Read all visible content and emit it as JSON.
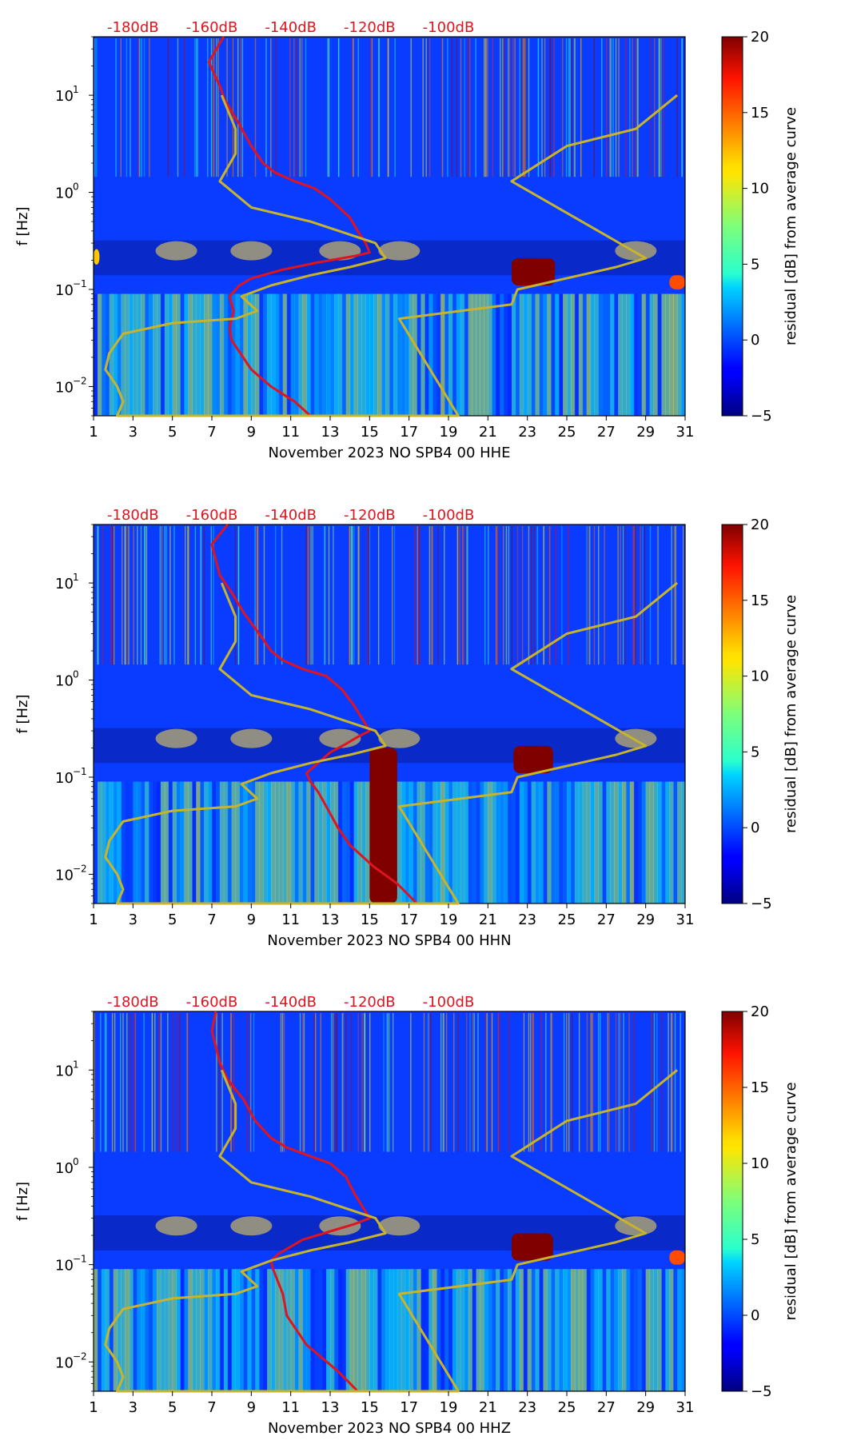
{
  "chart_data": [
    {
      "type": "heatmap",
      "xlabel": "November 2023 NO SPB4 00 HHE",
      "ylabel": "f [Hz]",
      "x_ticks": [
        "1",
        "3",
        "5",
        "7",
        "9",
        "11",
        "13",
        "15",
        "17",
        "19",
        "21",
        "23",
        "25",
        "27",
        "29",
        "31"
      ],
      "x_range": [
        1,
        31
      ],
      "y_range_hz": [
        0.005,
        40
      ],
      "y_scale": "log",
      "y_ticks": [
        "10",
        "10",
        "10",
        "10"
      ],
      "y_tick_exponents": [
        "1",
        "0",
        "−1",
        "−2"
      ],
      "y_tick_values": [
        10,
        1,
        0.1,
        0.01
      ],
      "top_axis_labels": [
        "-180dB",
        "-160dB",
        "-140dB",
        "-120dB",
        "-100dB"
      ],
      "top_axis_values": [
        -180,
        -160,
        -140,
        -120,
        -100
      ],
      "top_axis_day_positions": [
        3,
        7,
        11,
        15,
        19
      ],
      "colorbar": {
        "label": "residual [dB] from average curve",
        "min": -5,
        "max": 20,
        "ticks": [
          "20",
          "15",
          "10",
          "5",
          "0",
          "−5"
        ],
        "tick_values": [
          20,
          15,
          10,
          5,
          0,
          -5
        ],
        "colormap": "jet"
      },
      "hot_spots": [
        {
          "day_from": 22.2,
          "day_to": 24.4,
          "f_lo": 0.11,
          "f_hi": 0.21,
          "residual_db": 20
        },
        {
          "day_from": 30.2,
          "day_to": 31,
          "f_lo": 0.1,
          "f_hi": 0.14,
          "residual_db": 15
        },
        {
          "day_from": 1,
          "day_to": 1.3,
          "f_lo": 0.18,
          "f_hi": 0.26,
          "residual_db": 12
        }
      ],
      "series": [
        {
          "name": "red noise curve (dB scale on top axis)",
          "color": "#e0141e",
          "points_dB_f": [
            [
              -157,
              40
            ],
            [
              -160.8,
              22
            ],
            [
              -157.8,
              12
            ],
            [
              -156.8,
              9
            ],
            [
              -153,
              5
            ],
            [
              -150,
              3
            ],
            [
              -147,
              2
            ],
            [
              -144,
              1.6
            ],
            [
              -139,
              1.3
            ],
            [
              -134,
              1.1
            ],
            [
              -130,
              0.85
            ],
            [
              -125,
              0.55
            ],
            [
              -123,
              0.4
            ],
            [
              -121,
              0.3
            ],
            [
              -120,
              0.24
            ],
            [
              -124,
              0.22
            ],
            [
              -133,
              0.19
            ],
            [
              -142,
              0.16
            ],
            [
              -150,
              0.13
            ],
            [
              -153,
              0.11
            ],
            [
              -155.5,
              0.085
            ],
            [
              -154.5,
              0.06
            ],
            [
              -155.5,
              0.04
            ],
            [
              -155,
              0.03
            ],
            [
              -150,
              0.015
            ],
            [
              -145,
              0.01
            ],
            [
              -139,
              0.007
            ],
            [
              -135,
              0.005
            ]
          ]
        },
        {
          "name": "yellow model curve",
          "color": "#c8b42a",
          "points_day_f": [
            [
              7.5,
              10
            ],
            [
              8.2,
              4.5
            ],
            [
              8.2,
              2.5
            ],
            [
              7.4,
              1.3
            ],
            [
              9,
              0.7
            ],
            [
              12,
              0.5
            ],
            [
              15.3,
              0.3
            ],
            [
              15.8,
              0.21
            ],
            [
              14,
              0.17
            ],
            [
              12,
              0.14
            ],
            [
              10,
              0.11
            ],
            [
              8.5,
              0.085
            ],
            [
              9.3,
              0.06
            ],
            [
              8.2,
              0.05
            ],
            [
              5,
              0.045
            ],
            [
              2.5,
              0.035
            ],
            [
              1.8,
              0.022
            ],
            [
              1.6,
              0.015
            ],
            [
              2.2,
              0.01
            ],
            [
              2.5,
              0.007
            ],
            [
              2.2,
              0.005
            ],
            [
              19.5,
              0.005
            ],
            [
              16.5,
              0.05
            ],
            [
              22.2,
              0.07
            ],
            [
              22.5,
              0.1
            ],
            [
              27.5,
              0.17
            ],
            [
              29,
              0.21
            ],
            [
              22.2,
              1.3
            ],
            [
              25,
              3
            ],
            [
              28.5,
              4.5
            ],
            [
              30.6,
              10
            ]
          ]
        }
      ]
    },
    {
      "type": "heatmap",
      "xlabel": "November 2023 NO SPB4 00 HHN",
      "ylabel": "f [Hz]",
      "x_ticks": [
        "1",
        "3",
        "5",
        "7",
        "9",
        "11",
        "13",
        "15",
        "17",
        "19",
        "21",
        "23",
        "25",
        "27",
        "29",
        "31"
      ],
      "x_range": [
        1,
        31
      ],
      "y_range_hz": [
        0.005,
        40
      ],
      "y_scale": "log",
      "y_ticks": [
        "10",
        "10",
        "10",
        "10"
      ],
      "y_tick_exponents": [
        "1",
        "0",
        "−1",
        "−2"
      ],
      "y_tick_values": [
        10,
        1,
        0.1,
        0.01
      ],
      "top_axis_labels": [
        "-180dB",
        "-160dB",
        "-140dB",
        "-120dB",
        "-100dB"
      ],
      "top_axis_values": [
        -180,
        -160,
        -140,
        -120,
        -100
      ],
      "top_axis_day_positions": [
        3,
        7,
        11,
        15,
        19
      ],
      "colorbar": {
        "label": "residual [dB] from average curve",
        "min": -5,
        "max": 20,
        "ticks": [
          "20",
          "15",
          "10",
          "5",
          "0",
          "−5"
        ],
        "tick_values": [
          20,
          15,
          10,
          5,
          0,
          -5
        ],
        "colormap": "jet"
      },
      "hot_spots": [
        {
          "day_from": 22.3,
          "day_to": 24.3,
          "f_lo": 0.11,
          "f_hi": 0.21,
          "residual_db": 20
        },
        {
          "day_from": 15.0,
          "day_to": 16.4,
          "f_lo": 0.005,
          "f_hi": 0.2,
          "residual_db": 20
        }
      ],
      "series": [
        {
          "name": "red noise curve (dB scale on top axis)",
          "color": "#e0141e",
          "points_dB_f": [
            [
              -156,
              40
            ],
            [
              -160,
              25
            ],
            [
              -158,
              12
            ],
            [
              -155,
              8
            ],
            [
              -152,
              5
            ],
            [
              -148,
              3
            ],
            [
              -145,
              2
            ],
            [
              -142,
              1.6
            ],
            [
              -137,
              1.3
            ],
            [
              -131,
              1.1
            ],
            [
              -127,
              0.8
            ],
            [
              -124,
              0.55
            ],
            [
              -121,
              0.35
            ],
            [
              -120,
              0.3
            ],
            [
              -123,
              0.26
            ],
            [
              -126,
              0.22
            ],
            [
              -130,
              0.18
            ],
            [
              -134,
              0.13
            ],
            [
              -136,
              0.11
            ],
            [
              -135,
              0.09
            ],
            [
              -133,
              0.07
            ],
            [
              -131,
              0.05
            ],
            [
              -128,
              0.03
            ],
            [
              -125,
              0.02
            ],
            [
              -119,
              0.012
            ],
            [
              -113,
              0.008
            ],
            [
              -108,
              0.005
            ]
          ]
        },
        {
          "name": "yellow model curve",
          "color": "#c8b42a",
          "points_day_f": [
            [
              7.5,
              10
            ],
            [
              8.2,
              4.5
            ],
            [
              8.2,
              2.5
            ],
            [
              7.4,
              1.3
            ],
            [
              9,
              0.7
            ],
            [
              12,
              0.5
            ],
            [
              15.3,
              0.3
            ],
            [
              15.8,
              0.21
            ],
            [
              14,
              0.17
            ],
            [
              12,
              0.14
            ],
            [
              10,
              0.11
            ],
            [
              8.5,
              0.085
            ],
            [
              9.3,
              0.06
            ],
            [
              8.2,
              0.05
            ],
            [
              5,
              0.045
            ],
            [
              2.5,
              0.035
            ],
            [
              1.8,
              0.022
            ],
            [
              1.6,
              0.015
            ],
            [
              2.2,
              0.01
            ],
            [
              2.5,
              0.007
            ],
            [
              2.2,
              0.005
            ],
            [
              19.5,
              0.005
            ],
            [
              16.5,
              0.05
            ],
            [
              22.2,
              0.07
            ],
            [
              22.5,
              0.1
            ],
            [
              27.5,
              0.17
            ],
            [
              29,
              0.21
            ],
            [
              22.2,
              1.3
            ],
            [
              25,
              3
            ],
            [
              28.5,
              4.5
            ],
            [
              30.6,
              10
            ]
          ]
        }
      ]
    },
    {
      "type": "heatmap",
      "xlabel": "November 2023 NO SPB4 00 HHZ",
      "ylabel": "f [Hz]",
      "x_ticks": [
        "1",
        "3",
        "5",
        "7",
        "9",
        "11",
        "13",
        "15",
        "17",
        "19",
        "21",
        "23",
        "25",
        "27",
        "29",
        "31"
      ],
      "x_range": [
        1,
        31
      ],
      "y_range_hz": [
        0.005,
        40
      ],
      "y_scale": "log",
      "y_ticks": [
        "10",
        "10",
        "10",
        "10"
      ],
      "y_tick_exponents": [
        "1",
        "0",
        "−1",
        "−2"
      ],
      "y_tick_values": [
        10,
        1,
        0.1,
        0.01
      ],
      "top_axis_labels": [
        "-180dB",
        "-160dB",
        "-140dB",
        "-120dB",
        "-100dB"
      ],
      "top_axis_values": [
        -180,
        -160,
        -140,
        -120,
        -100
      ],
      "top_axis_day_positions": [
        3,
        7,
        11,
        15,
        19
      ],
      "colorbar": {
        "label": "residual [dB] from average curve",
        "min": -5,
        "max": 20,
        "ticks": [
          "20",
          "15",
          "10",
          "5",
          "0",
          "−5"
        ],
        "tick_values": [
          20,
          15,
          10,
          5,
          0,
          -5
        ],
        "colormap": "jet"
      },
      "hot_spots": [
        {
          "day_from": 22.2,
          "day_to": 24.3,
          "f_lo": 0.11,
          "f_hi": 0.21,
          "residual_db": 20
        },
        {
          "day_from": 30.2,
          "day_to": 31,
          "f_lo": 0.1,
          "f_hi": 0.14,
          "residual_db": 15
        }
      ],
      "series": [
        {
          "name": "red noise curve (dB scale on top axis)",
          "color": "#e0141e",
          "points_dB_f": [
            [
              -159,
              40
            ],
            [
              -160,
              25
            ],
            [
              -158,
              12
            ],
            [
              -156,
              8
            ],
            [
              -152,
              5
            ],
            [
              -149,
              3
            ],
            [
              -145,
              2
            ],
            [
              -141,
              1.6
            ],
            [
              -135,
              1.3
            ],
            [
              -130,
              1.1
            ],
            [
              -126,
              0.8
            ],
            [
              -124,
              0.55
            ],
            [
              -121,
              0.35
            ],
            [
              -120,
              0.3
            ],
            [
              -124,
              0.26
            ],
            [
              -130,
              0.22
            ],
            [
              -137,
              0.18
            ],
            [
              -143,
              0.13
            ],
            [
              -145,
              0.11
            ],
            [
              -144.5,
              0.09
            ],
            [
              -142,
              0.05
            ],
            [
              -141,
              0.03
            ],
            [
              -136,
              0.015
            ],
            [
              -128,
              0.008
            ],
            [
              -123,
              0.005
            ]
          ]
        },
        {
          "name": "yellow model curve",
          "color": "#c8b42a",
          "points_day_f": [
            [
              7.5,
              10
            ],
            [
              8.2,
              4.5
            ],
            [
              8.2,
              2.5
            ],
            [
              7.4,
              1.3
            ],
            [
              9,
              0.7
            ],
            [
              12,
              0.5
            ],
            [
              15.3,
              0.3
            ],
            [
              15.8,
              0.21
            ],
            [
              14,
              0.17
            ],
            [
              12,
              0.14
            ],
            [
              10,
              0.11
            ],
            [
              8.5,
              0.085
            ],
            [
              9.3,
              0.06
            ],
            [
              8.2,
              0.05
            ],
            [
              5,
              0.045
            ],
            [
              2.5,
              0.035
            ],
            [
              1.8,
              0.022
            ],
            [
              1.6,
              0.015
            ],
            [
              2.2,
              0.01
            ],
            [
              2.5,
              0.007
            ],
            [
              2.2,
              0.005
            ],
            [
              19.5,
              0.005
            ],
            [
              16.5,
              0.05
            ],
            [
              22.2,
              0.07
            ],
            [
              22.5,
              0.1
            ],
            [
              27.5,
              0.17
            ],
            [
              29,
              0.21
            ],
            [
              22.2,
              1.3
            ],
            [
              25,
              3
            ],
            [
              28.5,
              4.5
            ],
            [
              30.6,
              10
            ]
          ]
        }
      ]
    }
  ]
}
